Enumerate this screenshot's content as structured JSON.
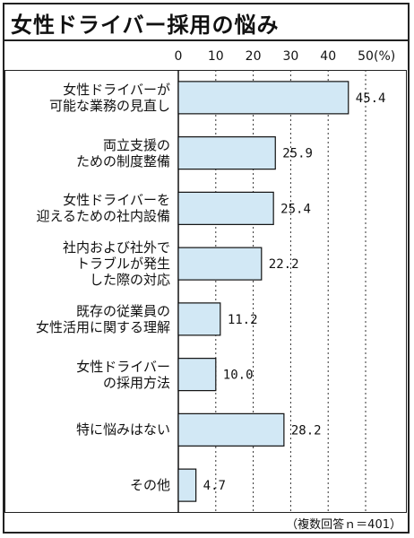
{
  "title": "女性ドライバー採用の悩み",
  "note": "（複数回答ｎ＝401）",
  "colors": {
    "bar_fill": "#d2e8f5",
    "bar_stroke": "#111111",
    "grid": "#333333"
  },
  "chart_data": {
    "type": "bar",
    "orientation": "horizontal",
    "title": "女性ドライバー採用の悩み",
    "xlim": [
      0,
      50
    ],
    "xticks": [
      "0",
      "10",
      "20",
      "30",
      "40",
      "50"
    ],
    "unit_label": "(%)",
    "categories": [
      [
        "女性ドライバーが",
        "可能な業務の見直し"
      ],
      [
        "両立支援の",
        "ための制度整備"
      ],
      [
        "女性ドライバーを",
        "迎えるための社内設備"
      ],
      [
        "社内および社外で",
        "トラブルが発生",
        "した際の対応"
      ],
      [
        "既存の従業員の",
        "女性活用に関する理解"
      ],
      [
        "女性ドライバー",
        "の採用方法"
      ],
      [
        "特に悩みはない"
      ],
      [
        "その他"
      ]
    ],
    "values": [
      45.4,
      25.9,
      25.4,
      22.2,
      11.2,
      10.0,
      28.2,
      4.7
    ],
    "value_labels": [
      "45.4",
      "25.9",
      "25.4",
      "22.2",
      "11.2",
      "10.0",
      "28.2",
      "4.7"
    ],
    "grid": true
  }
}
